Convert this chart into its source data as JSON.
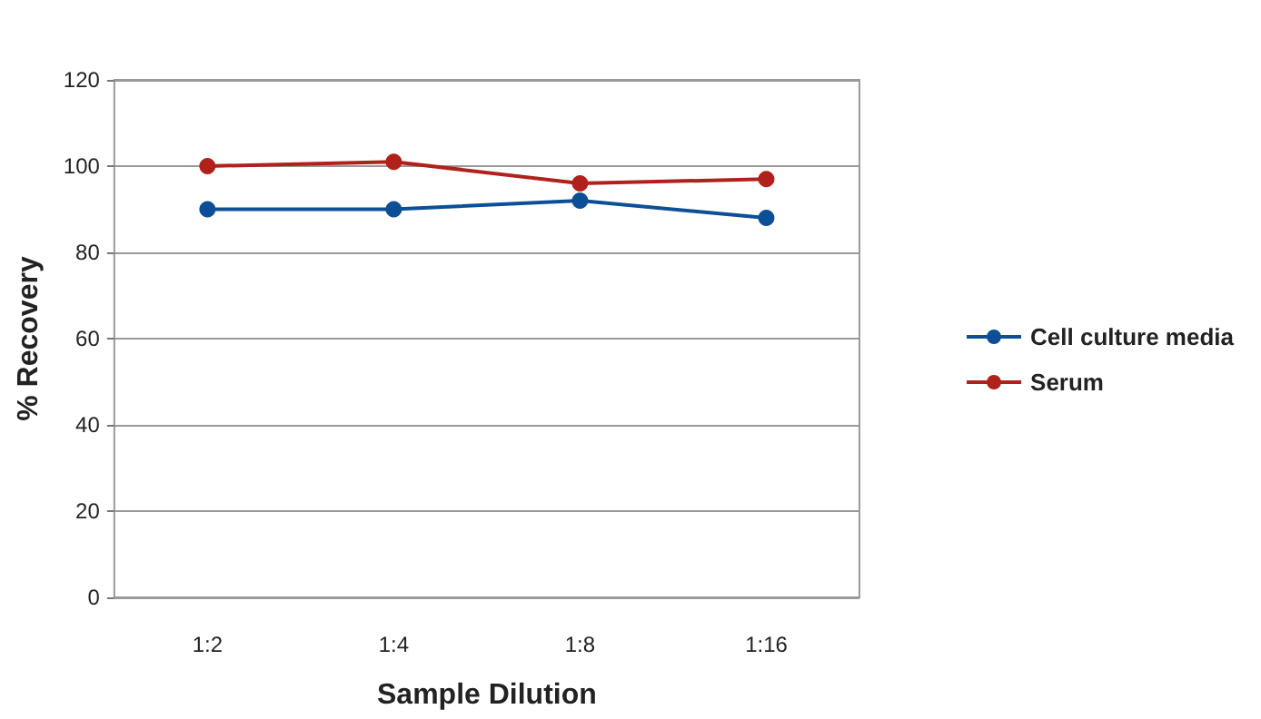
{
  "chart_data": {
    "type": "line",
    "xlabel": "Sample Dilution",
    "ylabel": "% Recovery",
    "categories": [
      "1:2",
      "1:4",
      "1:8",
      "1:16"
    ],
    "series": [
      {
        "name": "Cell culture media",
        "color": "#0d4f96",
        "values": [
          90,
          90,
          92,
          88
        ]
      },
      {
        "name": "Serum",
        "color": "#b0211b",
        "values": [
          100,
          101,
          96,
          97
        ]
      }
    ],
    "ylim": [
      0,
      120
    ],
    "yticks": [
      0,
      20,
      40,
      60,
      80,
      100,
      120
    ],
    "grid": "y",
    "legend": "right",
    "marker": "circle",
    "line_style": "solid"
  }
}
